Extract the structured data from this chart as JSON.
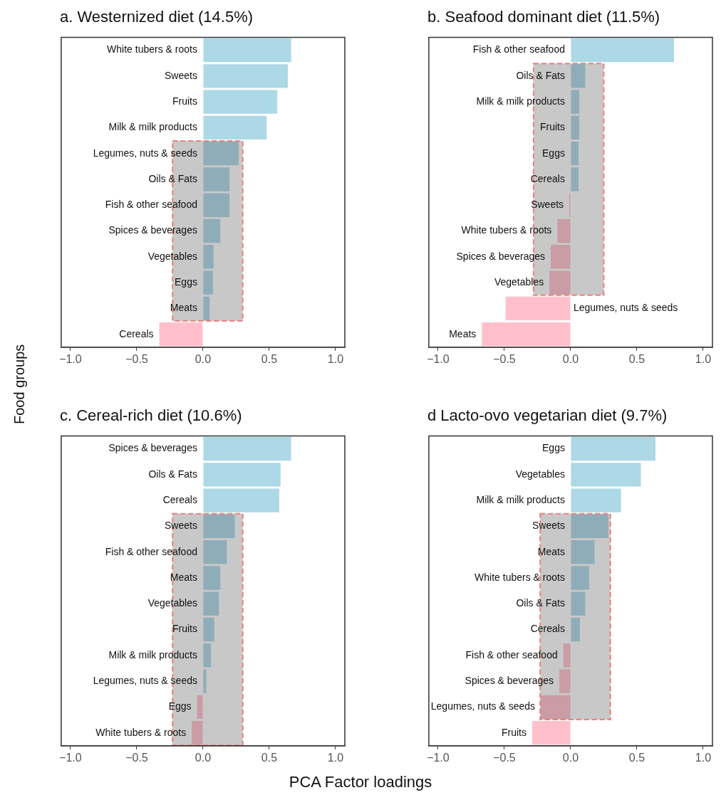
{
  "chart_data": [
    {
      "type": "bar",
      "orientation": "horizontal",
      "title": "a. Westernized diet (14.5%)",
      "ylabel": "Food groups",
      "categories": [
        "White tubers & roots",
        "Sweets",
        "Fruits",
        "Milk & milk products",
        "Legumes, nuts & seeds",
        "Oils & Fats",
        "Fish & other seafood",
        "Spices & beverages",
        "Vegetables",
        "Eggs",
        "Meats",
        "Cereals"
      ],
      "values": [
        0.665,
        0.64,
        0.56,
        0.48,
        0.27,
        0.2,
        0.2,
        0.13,
        0.08,
        0.075,
        0.05,
        -0.33
      ],
      "colors": [
        "#add8e6",
        "#add8e6",
        "#add8e6",
        "#add8e6",
        "#8fadb8",
        "#8fadb8",
        "#8fadb8",
        "#8fadb8",
        "#8fadb8",
        "#8fadb8",
        "#8fadb8",
        "#ffc0cb"
      ],
      "xlim": [
        -1.07,
        1.07
      ],
      "xticks": [
        {
          "value": -1,
          "label": "−1.0"
        },
        {
          "value": -0.5,
          "label": "−0.5"
        },
        {
          "value": 0,
          "label": "0.0"
        },
        {
          "value": 0.5,
          "label": "0.5"
        },
        {
          "value": 1,
          "label": "1.0"
        }
      ],
      "bands": [
        {
          "axis": "x",
          "from": -0.23,
          "to": 0.3,
          "color": "#c8c8c8"
        }
      ],
      "grid": false,
      "legend": false
    },
    {
      "type": "bar",
      "orientation": "horizontal",
      "title": "b. Seafood dominant diet (11.5%)",
      "categories": [
        "Fish & other seafood",
        "Oils & Fats",
        "Milk & milk products",
        "Fruits",
        "Eggs",
        "Cereals",
        "Sweets",
        "White tubers & roots",
        "Spices & beverages",
        "Vegetables",
        "Legumes, nuts & seeds",
        "Meats"
      ],
      "values": [
        0.78,
        0.11,
        0.065,
        0.065,
        0.06,
        0.06,
        -0.01,
        -0.1,
        -0.15,
        -0.16,
        -0.49,
        -0.67
      ],
      "colors": [
        "#add8e6",
        "#8fadb8",
        "#8fadb8",
        "#8fadb8",
        "#8fadb8",
        "#8fadb8",
        "#c99ca6",
        "#c99ca6",
        "#c99ca6",
        "#c99ca6",
        "#ffc0cb",
        "#ffc0cb"
      ],
      "xlim": [
        -1.07,
        1.07
      ],
      "xticks": [
        {
          "value": -1,
          "label": "−1.0"
        },
        {
          "value": -0.5,
          "label": "−0.5"
        },
        {
          "value": 0,
          "label": "0.0"
        },
        {
          "value": 0.5,
          "label": "0.5"
        },
        {
          "value": 1,
          "label": "1.0"
        }
      ],
      "bands": [
        {
          "axis": "x",
          "from": -0.28,
          "to": 0.25,
          "color": "#c8c8c8"
        }
      ],
      "grid": false,
      "legend": false
    },
    {
      "type": "bar",
      "orientation": "horizontal",
      "title": "c. Cereal-rich diet (10.6%)",
      "xlabel": "PCA Factor loadings",
      "categories": [
        "Spices & beverages",
        "Oils & Fats",
        "Cereals",
        "Sweets",
        "Fish & other seafood",
        "Meats",
        "Vegetables",
        "Fruits",
        "Milk & milk products",
        "Legumes, nuts & seeds",
        "Eggs",
        "White tubers & roots"
      ],
      "values": [
        0.665,
        0.585,
        0.575,
        0.24,
        0.18,
        0.13,
        0.12,
        0.085,
        0.06,
        0.025,
        -0.045,
        -0.085
      ],
      "colors": [
        "#add8e6",
        "#add8e6",
        "#add8e6",
        "#8fadb8",
        "#8fadb8",
        "#8fadb8",
        "#8fadb8",
        "#8fadb8",
        "#8fadb8",
        "#8fadb8",
        "#c99ca6",
        "#c99ca6"
      ],
      "xlim": [
        -1.07,
        1.07
      ],
      "xticks": [
        {
          "value": -1,
          "label": "−1.0"
        },
        {
          "value": -0.5,
          "label": "−0.5"
        },
        {
          "value": 0,
          "label": "0.0"
        },
        {
          "value": 0.5,
          "label": "0.5"
        },
        {
          "value": 1,
          "label": "1.0"
        }
      ],
      "bands": [
        {
          "axis": "x",
          "from": -0.23,
          "to": 0.3,
          "color": "#c8c8c8"
        }
      ],
      "grid": false,
      "legend": false
    },
    {
      "type": "bar",
      "orientation": "horizontal",
      "title": "d Lacto-ovo vegetarian diet (9.7%)",
      "categories": [
        "Eggs",
        "Vegetables",
        "Milk & milk products",
        "Sweets",
        "Meats",
        "White tubers & roots",
        "Oils & Fats",
        "Cereals",
        "Fish & other seafood",
        "Spices & beverages",
        "Legumes, nuts & seeds",
        "Fruits"
      ],
      "values": [
        0.64,
        0.53,
        0.38,
        0.285,
        0.18,
        0.14,
        0.11,
        0.07,
        -0.055,
        -0.085,
        -0.225,
        -0.29
      ],
      "colors": [
        "#add8e6",
        "#add8e6",
        "#add8e6",
        "#8fadb8",
        "#8fadb8",
        "#8fadb8",
        "#8fadb8",
        "#8fadb8",
        "#c99ca6",
        "#c99ca6",
        "#c99ca6",
        "#ffc0cb"
      ],
      "xlim": [
        -1.07,
        1.07
      ],
      "xticks": [
        {
          "value": -1,
          "label": "−1.0"
        },
        {
          "value": -0.5,
          "label": "−0.5"
        },
        {
          "value": 0,
          "label": "0.0"
        },
        {
          "value": 0.5,
          "label": "0.5"
        },
        {
          "value": 1,
          "label": "1.0"
        }
      ],
      "bands": [
        {
          "axis": "x",
          "from": -0.23,
          "to": 0.3,
          "color": "#c8c8c8"
        }
      ],
      "grid": false,
      "legend": false
    }
  ]
}
